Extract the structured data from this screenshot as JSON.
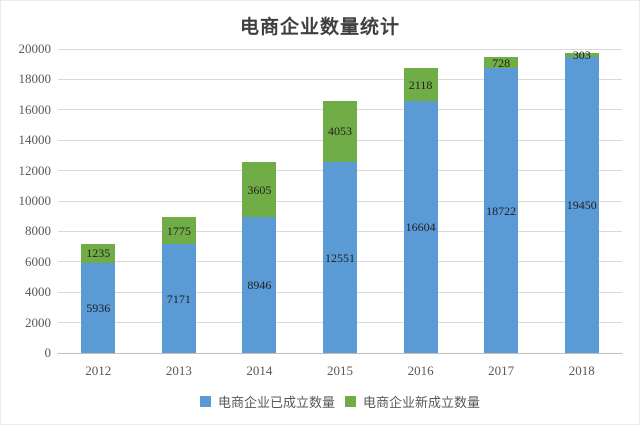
{
  "chart_data": {
    "type": "bar",
    "stacked": true,
    "title": "电商企业数量统计",
    "categories": [
      "2012",
      "2013",
      "2014",
      "2015",
      "2016",
      "2017",
      "2018"
    ],
    "series": [
      {
        "name": "电商企业已成立数量",
        "color": "#5B9BD5",
        "values": [
          5936,
          7171,
          8946,
          12551,
          16604,
          18722,
          19450
        ]
      },
      {
        "name": "电商企业新成立数量",
        "color": "#70AD47",
        "values": [
          1235,
          1775,
          3605,
          4053,
          2118,
          728,
          303
        ]
      }
    ],
    "xlabel": "",
    "ylabel": "",
    "ylim": [
      0,
      20000
    ],
    "ytick_step": 2000,
    "grid": true,
    "data_labels": true,
    "legend_position": "bottom"
  },
  "styles": {
    "bar_blue": "#5B9BD5",
    "bar_green": "#70AD47",
    "gridline_color": "#D9D9D9",
    "axis_line_color": "#BFBFBF",
    "axis_text_color": "#595959",
    "title_color": "#3F3F3F",
    "data_label_color": "#1F1F1F",
    "background": "#FFFFFF",
    "border_color": "#EBEBEB"
  }
}
